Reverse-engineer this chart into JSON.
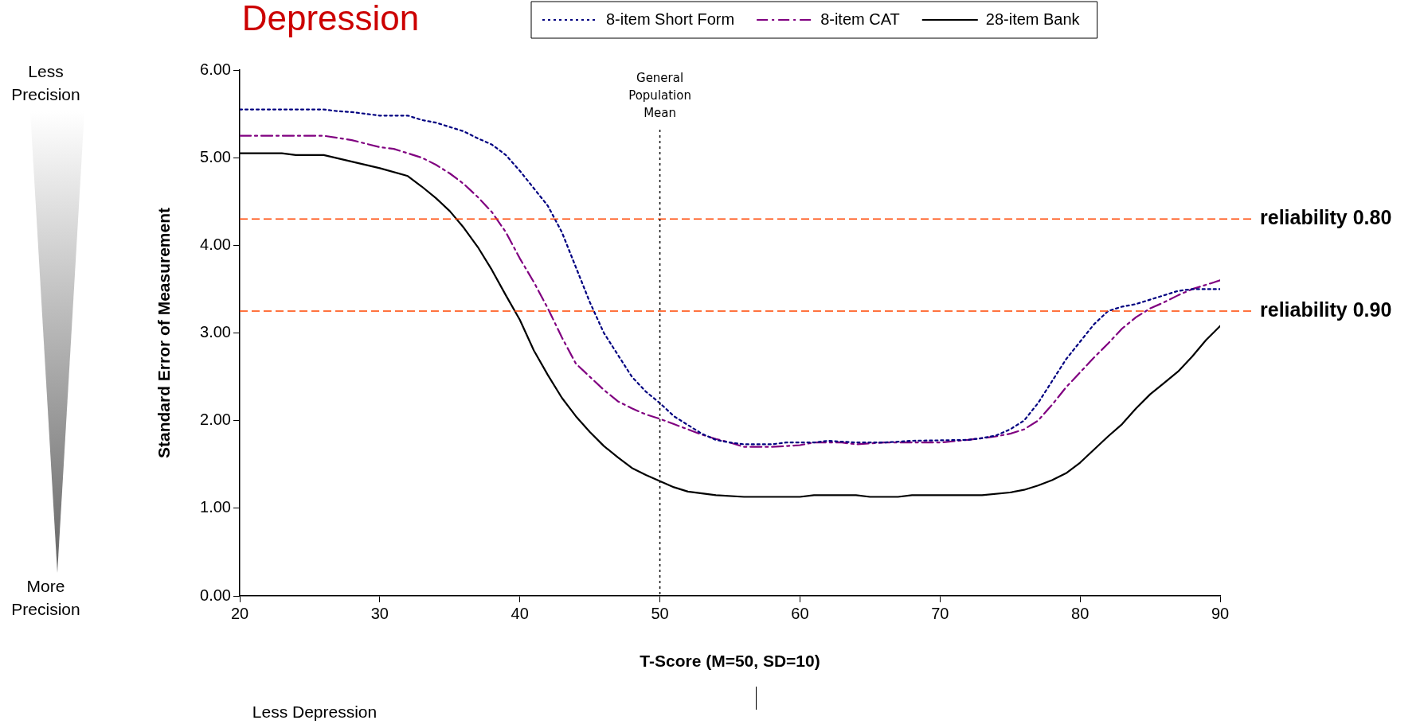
{
  "chart_data": {
    "type": "line",
    "title": "Depression",
    "xlabel": "T-Score (M=50, SD=10)",
    "ylabel": "Standard Error of Measurement",
    "xlim": [
      20,
      90
    ],
    "xticks": [
      20,
      30,
      40,
      50,
      60,
      70,
      80,
      90
    ],
    "ylim": [
      0,
      6
    ],
    "yticks": [
      {
        "value": 0,
        "label": "0.00"
      },
      {
        "value": 1,
        "label": "1.00"
      },
      {
        "value": 2,
        "label": "2.00"
      },
      {
        "value": 3,
        "label": "3.00"
      },
      {
        "value": 4,
        "label": "4.00"
      },
      {
        "value": 5,
        "label": "5.00"
      },
      {
        "value": 6,
        "label": "6.00"
      }
    ],
    "grid": false,
    "legend": "top",
    "marker": "none",
    "series": [
      {
        "name": "8-item Short Form",
        "color": "#000080",
        "line_style": "dotted",
        "x": [
          20,
          26,
          27,
          28,
          30,
          32,
          33,
          34,
          35,
          36,
          37,
          38,
          39,
          40,
          41,
          42,
          43,
          44,
          45,
          46,
          47,
          48,
          49,
          50,
          51,
          52,
          53,
          54,
          55,
          56,
          58,
          59,
          61,
          62,
          64,
          66,
          68,
          72,
          73,
          74,
          75,
          76,
          77,
          78,
          79,
          80,
          81,
          82,
          83,
          84,
          85,
          86,
          87,
          88,
          89,
          90
        ],
        "values": [
          5.55,
          5.55,
          5.53,
          5.52,
          5.48,
          5.48,
          5.43,
          5.4,
          5.35,
          5.3,
          5.22,
          5.15,
          5.03,
          4.85,
          4.65,
          4.45,
          4.15,
          3.75,
          3.35,
          3.0,
          2.75,
          2.5,
          2.33,
          2.2,
          2.05,
          1.95,
          1.85,
          1.78,
          1.75,
          1.73,
          1.73,
          1.75,
          1.75,
          1.77,
          1.75,
          1.75,
          1.77,
          1.78,
          1.8,
          1.83,
          1.9,
          2.0,
          2.2,
          2.45,
          2.7,
          2.9,
          3.1,
          3.25,
          3.3,
          3.33,
          3.38,
          3.43,
          3.48,
          3.5,
          3.5,
          3.5
        ]
      },
      {
        "name": "8-item CAT",
        "color": "#800080",
        "line_style": "dashdot",
        "x": [
          20,
          26,
          28,
          30,
          31,
          32,
          33,
          34,
          35,
          36,
          37,
          38,
          39,
          40,
          41,
          42,
          43,
          44,
          45,
          46,
          47,
          48,
          49,
          50,
          51,
          52,
          53,
          54,
          55,
          56,
          58,
          60,
          61,
          63,
          64,
          66,
          70,
          72,
          74,
          75,
          76,
          77,
          78,
          79,
          80,
          81,
          82,
          83,
          84,
          85,
          86,
          87,
          88,
          89,
          90
        ],
        "values": [
          5.25,
          5.25,
          5.2,
          5.12,
          5.1,
          5.05,
          5.0,
          4.92,
          4.82,
          4.7,
          4.55,
          4.38,
          4.15,
          3.85,
          3.58,
          3.28,
          2.95,
          2.65,
          2.5,
          2.35,
          2.22,
          2.14,
          2.07,
          2.02,
          1.96,
          1.9,
          1.84,
          1.79,
          1.75,
          1.7,
          1.7,
          1.72,
          1.75,
          1.75,
          1.73,
          1.75,
          1.75,
          1.78,
          1.82,
          1.85,
          1.9,
          2.0,
          2.18,
          2.38,
          2.55,
          2.72,
          2.88,
          3.05,
          3.18,
          3.28,
          3.35,
          3.43,
          3.5,
          3.55,
          3.6
        ]
      },
      {
        "name": "28-item Bank",
        "color": "#000000",
        "line_style": "solid",
        "x": [
          20,
          23,
          24,
          26,
          30,
          32,
          33,
          34,
          35,
          36,
          37,
          38,
          39,
          40,
          41,
          42,
          43,
          44,
          45,
          46,
          47,
          48,
          49,
          50,
          51,
          52,
          54,
          56,
          60,
          61,
          64,
          65,
          67,
          68,
          73,
          75,
          76,
          77,
          78,
          79,
          80,
          81,
          82,
          83,
          84,
          85,
          86,
          87,
          88,
          89,
          90
        ],
        "values": [
          5.05,
          5.05,
          5.03,
          5.03,
          4.88,
          4.79,
          4.67,
          4.54,
          4.39,
          4.2,
          3.98,
          3.72,
          3.43,
          3.15,
          2.8,
          2.52,
          2.26,
          2.05,
          1.87,
          1.71,
          1.58,
          1.46,
          1.38,
          1.31,
          1.24,
          1.19,
          1.15,
          1.13,
          1.13,
          1.15,
          1.15,
          1.13,
          1.13,
          1.15,
          1.15,
          1.18,
          1.21,
          1.26,
          1.32,
          1.4,
          1.52,
          1.67,
          1.82,
          1.96,
          2.14,
          2.3,
          2.43,
          2.56,
          2.73,
          2.92,
          3.08
        ]
      }
    ],
    "ref_lines": [
      {
        "axis": "y",
        "value": 4.3,
        "label": "reliability 0.80",
        "color": "#ff4500",
        "line_style": "dashed"
      },
      {
        "axis": "y",
        "value": 3.25,
        "label": "reliability 0.90",
        "color": "#ff4500",
        "line_style": "dashed"
      },
      {
        "axis": "x",
        "value": 50,
        "label": "General Population Mean",
        "color": "#000000",
        "line_style": "dotted"
      }
    ],
    "annotations": [
      "Less Precision",
      "More Precision",
      "Less Depression"
    ]
  }
}
